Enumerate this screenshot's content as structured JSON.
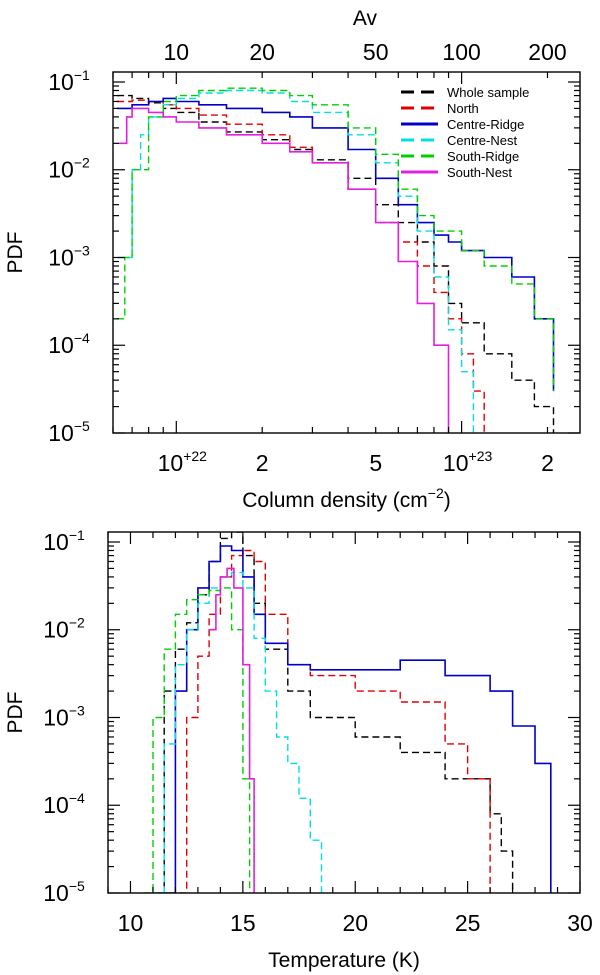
{
  "chart_data": [
    {
      "type": "line",
      "panel": "top",
      "xlabel": "Column density (cm",
      "xlabel_sup": "−2",
      "xlabel_close": ")",
      "ylabel": "PDF",
      "top_axis_title": "Av",
      "x_scale": "log",
      "y_scale": "log",
      "xlim": [
        6e+21,
        2.6e+23
      ],
      "ylim": [
        1e-05,
        0.13
      ],
      "x_ticks": [
        {
          "value": 1e+22,
          "base": "10",
          "sup": "+22"
        },
        {
          "value": 2e+22,
          "base": "2",
          "sup": ""
        },
        {
          "value": 5e+22,
          "base": "5",
          "sup": ""
        },
        {
          "value": 1e+23,
          "base": "10",
          "sup": "+23"
        },
        {
          "value": 2e+23,
          "base": "2",
          "sup": ""
        }
      ],
      "top_ticks": [
        {
          "value": 1e+22,
          "label": "10"
        },
        {
          "value": 2e+22,
          "label": "20"
        },
        {
          "value": 5e+22,
          "label": "50"
        },
        {
          "value": 1e+23,
          "label": "100"
        },
        {
          "value": 2e+23,
          "label": "200"
        }
      ],
      "y_ticks": [
        {
          "value": 0.1,
          "base": "10",
          "sup": "−1"
        },
        {
          "value": 0.01,
          "base": "10",
          "sup": "−2"
        },
        {
          "value": 0.001,
          "base": "10",
          "sup": "−3"
        },
        {
          "value": 0.0001,
          "base": "10",
          "sup": "−4"
        },
        {
          "value": 1e-05,
          "base": "10",
          "sup": "−5"
        }
      ],
      "legend": {
        "position": "top-right"
      },
      "series": [
        {
          "name": "Whole sample",
          "color": "#000000",
          "dash": "dash",
          "x": [
            6.2e+21,
            7e+21,
            8e+21,
            9e+21,
            1e+22,
            1.2e+22,
            1.5e+22,
            2e+22,
            2.5e+22,
            3e+22,
            4e+22,
            5e+22,
            6e+22,
            7e+22,
            8e+22,
            9e+22,
            1e+23,
            1.2e+23,
            1.5e+23,
            1.8e+23,
            2.1e+23
          ],
          "y": [
            0.07,
            0.065,
            0.058,
            0.05,
            0.045,
            0.035,
            0.027,
            0.022,
            0.017,
            0.013,
            0.008,
            0.004,
            0.0025,
            0.0015,
            0.0008,
            0.0003,
            0.00018,
            8e-05,
            4e-05,
            2e-05,
            1e-05
          ]
        },
        {
          "name": "North",
          "color": "#e00000",
          "dash": "dash",
          "x": [
            6.2e+21,
            7e+21,
            8e+21,
            9e+21,
            1e+22,
            1.2e+22,
            1.5e+22,
            2e+22,
            2.5e+22,
            3e+22,
            4e+22,
            5e+22,
            6e+22,
            7e+22,
            8e+22,
            9e+22,
            1e+23,
            1.1e+23,
            1.2e+23
          ],
          "y": [
            0.06,
            0.062,
            0.06,
            0.055,
            0.05,
            0.042,
            0.033,
            0.025,
            0.018,
            0.012,
            0.006,
            0.0025,
            0.0015,
            0.0008,
            0.0004,
            0.0002,
            8e-05,
            3e-05,
            1e-05
          ]
        },
        {
          "name": "Centre-Ridge",
          "color": "#0000c8",
          "dash": "solid",
          "x": [
            6.2e+21,
            7e+21,
            8e+21,
            9e+21,
            1e+22,
            1.2e+22,
            1.5e+22,
            2e+22,
            2.5e+22,
            3e+22,
            4e+22,
            5e+22,
            6e+22,
            7e+22,
            8e+22,
            9e+22,
            1e+23,
            1.2e+23,
            1.5e+23,
            1.8e+23,
            2.1e+23
          ],
          "y": [
            0.05,
            0.055,
            0.06,
            0.065,
            0.06,
            0.055,
            0.05,
            0.045,
            0.04,
            0.03,
            0.017,
            0.008,
            0.004,
            0.0025,
            0.0018,
            0.0015,
            0.0012,
            0.001,
            0.0006,
            0.0002,
            3e-05
          ]
        },
        {
          "name": "Centre-Nest",
          "color": "#00e0e0",
          "dash": "dash",
          "x": [
            6.2e+21,
            7e+21,
            7.5e+21,
            8e+21,
            9e+21,
            1e+22,
            1.2e+22,
            1.5e+22,
            2e+22,
            2.5e+22,
            3e+22,
            4e+22,
            5e+22,
            6e+22,
            7e+22,
            8e+22,
            9e+22,
            1e+23,
            1.1e+23
          ],
          "y": [
            0.001,
            0.01,
            0.025,
            0.04,
            0.055,
            0.065,
            0.075,
            0.08,
            0.075,
            0.06,
            0.045,
            0.025,
            0.012,
            0.005,
            0.002,
            0.0006,
            0.00015,
            5e-05,
            1e-05
          ]
        },
        {
          "name": "South-Ridge",
          "color": "#00d000",
          "dash": "dash",
          "x": [
            6.2e+21,
            6.6e+21,
            7e+21,
            8e+21,
            9e+21,
            1e+22,
            1.2e+22,
            1.5e+22,
            2e+22,
            2.5e+22,
            3e+22,
            4e+22,
            5e+22,
            6e+22,
            7e+22,
            8e+22,
            1e+23,
            1.2e+23,
            1.5e+23,
            1.8e+23,
            2.1e+23
          ],
          "y": [
            0.0002,
            0.001,
            0.01,
            0.04,
            0.06,
            0.07,
            0.08,
            0.085,
            0.08,
            0.07,
            0.055,
            0.03,
            0.015,
            0.006,
            0.003,
            0.002,
            0.0012,
            0.0008,
            0.0005,
            0.0002,
            3e-05
          ]
        },
        {
          "name": "South-Nest",
          "color": "#e020e0",
          "dash": "solid",
          "x": [
            6.3e+21,
            6.7e+21,
            7e+21,
            8e+21,
            9e+21,
            1e+22,
            1.2e+22,
            1.5e+22,
            2e+22,
            2.5e+22,
            3e+22,
            4e+22,
            5e+22,
            6e+22,
            7e+22,
            8e+22,
            9e+22
          ],
          "y": [
            0.02,
            0.04,
            0.05,
            0.045,
            0.04,
            0.035,
            0.03,
            0.025,
            0.02,
            0.016,
            0.012,
            0.006,
            0.0025,
            0.0009,
            0.0003,
            0.0001,
            1e-05
          ]
        }
      ]
    },
    {
      "type": "line",
      "panel": "bottom",
      "xlabel": "Temperature (K)",
      "ylabel": "PDF",
      "x_scale": "linear",
      "y_scale": "log",
      "xlim": [
        9,
        30
      ],
      "ylim": [
        1e-05,
        0.13
      ],
      "x_ticks": [
        {
          "value": 10,
          "base": "10",
          "sup": ""
        },
        {
          "value": 15,
          "base": "15",
          "sup": ""
        },
        {
          "value": 20,
          "base": "20",
          "sup": ""
        },
        {
          "value": 25,
          "base": "25",
          "sup": ""
        },
        {
          "value": 30,
          "base": "30",
          "sup": ""
        }
      ],
      "y_ticks": [
        {
          "value": 0.1,
          "base": "10",
          "sup": "−1"
        },
        {
          "value": 0.01,
          "base": "10",
          "sup": "−2"
        },
        {
          "value": 0.001,
          "base": "10",
          "sup": "−3"
        },
        {
          "value": 0.0001,
          "base": "10",
          "sup": "−4"
        },
        {
          "value": 1e-05,
          "base": "10",
          "sup": "−5"
        }
      ],
      "series": [
        {
          "name": "Whole sample",
          "color": "#000000",
          "dash": "dash",
          "x": [
            11.2,
            11.5,
            12,
            12.5,
            13,
            13.5,
            14,
            14.5,
            15,
            15.5,
            16,
            17,
            18,
            20,
            22,
            24,
            26,
            26.5,
            27
          ],
          "y": [
            1e-05,
            0.002,
            0.006,
            0.012,
            0.025,
            0.06,
            0.11,
            0.13,
            0.07,
            0.02,
            0.006,
            0.002,
            0.001,
            0.0006,
            0.0004,
            0.0002,
            8e-05,
            3e-05,
            1e-05
          ]
        },
        {
          "name": "North",
          "color": "#e00000",
          "dash": "dash",
          "x": [
            12.2,
            12.5,
            13,
            13.5,
            14,
            14.5,
            15,
            15.5,
            16,
            17,
            18,
            20,
            22,
            24,
            25,
            26
          ],
          "y": [
            1e-05,
            0.001,
            0.005,
            0.015,
            0.04,
            0.07,
            0.08,
            0.06,
            0.015,
            0.004,
            0.003,
            0.002,
            0.0015,
            0.0005,
            0.0002,
            1e-05
          ]
        },
        {
          "name": "Centre-Ridge",
          "color": "#0000c8",
          "dash": "solid",
          "x": [
            11.5,
            12,
            12.5,
            13,
            13.5,
            14,
            14.5,
            15,
            15.5,
            16,
            17,
            18,
            20,
            22,
            24,
            26,
            27,
            28,
            28.7
          ],
          "y": [
            1e-05,
            0.002,
            0.01,
            0.03,
            0.06,
            0.09,
            0.08,
            0.04,
            0.015,
            0.007,
            0.004,
            0.0035,
            0.0035,
            0.0045,
            0.003,
            0.002,
            0.0008,
            0.0003,
            1e-05
          ]
        },
        {
          "name": "Centre-Nest",
          "color": "#00e0e0",
          "dash": "dash",
          "x": [
            11,
            11.5,
            12,
            12.5,
            13,
            13.5,
            14,
            14.5,
            15,
            15.5,
            16,
            16.5,
            17,
            17.5,
            18,
            18.5
          ],
          "y": [
            1e-05,
            0.0005,
            0.004,
            0.01,
            0.02,
            0.03,
            0.04,
            0.045,
            0.03,
            0.008,
            0.002,
            0.0006,
            0.0003,
            0.00012,
            4e-05,
            1e-05
          ]
        },
        {
          "name": "South-Ridge",
          "color": "#00d000",
          "dash": "dash",
          "x": [
            10.6,
            11,
            11.5,
            12,
            12.5,
            13,
            13.5,
            14,
            14.5,
            15,
            15.3
          ],
          "y": [
            1e-05,
            0.001,
            0.006,
            0.015,
            0.022,
            0.025,
            0.028,
            0.03,
            0.01,
            0.0002,
            1e-05
          ]
        },
        {
          "name": "South-Nest",
          "color": "#e020e0",
          "dash": "solid",
          "x": [
            13.5,
            13.8,
            14,
            14.3,
            14.6,
            15,
            15.3,
            15.5
          ],
          "y": [
            0.01,
            0.025,
            0.04,
            0.05,
            0.03,
            0.004,
            0.0002,
            1e-05
          ]
        }
      ]
    }
  ]
}
